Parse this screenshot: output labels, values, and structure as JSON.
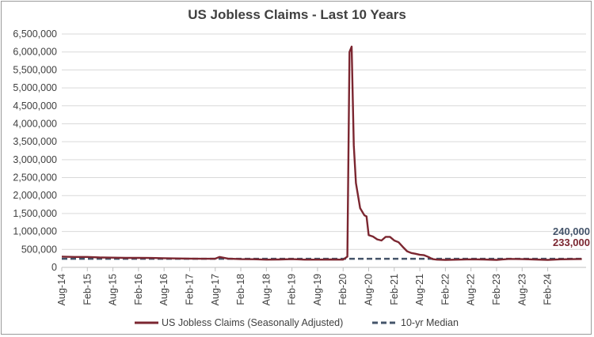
{
  "chart_data": {
    "type": "line",
    "title": "US Jobless Claims - Last 10 Years",
    "xlabel": "",
    "ylabel": "",
    "ylim": [
      0,
      6500000
    ],
    "y_ticks": [
      "0",
      "500,000",
      "1,000,000",
      "1,500,000",
      "2,000,000",
      "2,500,000",
      "3,000,000",
      "3,500,000",
      "4,000,000",
      "4,500,000",
      "5,000,000",
      "5,500,000",
      "6,000,000",
      "6,500,000"
    ],
    "x_ticks": [
      "Aug-14",
      "Feb-15",
      "Aug-15",
      "Feb-16",
      "Aug-16",
      "Feb-17",
      "Aug-17",
      "Feb-18",
      "Aug-18",
      "Feb-19",
      "Aug-19",
      "Feb-20",
      "Aug-20",
      "Feb-21",
      "Aug-21",
      "Feb-22",
      "Aug-22",
      "Feb-23",
      "Aug-23",
      "Feb-24"
    ],
    "grid": true,
    "legend_position": "bottom",
    "series": [
      {
        "name": "US Jobless Claims (Seasonally Adjusted)",
        "color": "#7b2630",
        "style": "solid",
        "x": [
          "2014-08",
          "2014-11",
          "2015-02",
          "2015-05",
          "2015-08",
          "2015-11",
          "2016-02",
          "2016-05",
          "2016-08",
          "2016-11",
          "2017-02",
          "2017-05",
          "2017-08",
          "2017-09",
          "2017-11",
          "2018-02",
          "2018-05",
          "2018-08",
          "2018-11",
          "2019-02",
          "2019-05",
          "2019-08",
          "2019-11",
          "2020-02",
          "2020-03a",
          "2020-03b",
          "2020-04a",
          "2020-04b",
          "2020-05",
          "2020-06",
          "2020-07a",
          "2020-07b",
          "2020-08a",
          "2020-08b",
          "2020-09",
          "2020-10",
          "2020-11",
          "2020-12",
          "2021-01",
          "2021-02",
          "2021-03",
          "2021-04",
          "2021-05",
          "2021-06",
          "2021-07",
          "2021-08",
          "2021-09",
          "2021-10",
          "2021-11",
          "2021-12",
          "2022-02",
          "2022-05",
          "2022-08",
          "2022-11",
          "2023-02",
          "2023-05",
          "2023-08",
          "2023-11",
          "2024-02",
          "2024-05",
          "2024-08",
          "2024-10"
        ],
        "values": [
          300000,
          290000,
          290000,
          275000,
          270000,
          265000,
          265000,
          262000,
          255000,
          250000,
          245000,
          240000,
          242000,
          290000,
          245000,
          230000,
          228000,
          215000,
          220000,
          230000,
          215000,
          215000,
          220000,
          215000,
          300000,
          6000000,
          6150000,
          3400000,
          2350000,
          1650000,
          1450000,
          1420000,
          900000,
          880000,
          860000,
          780000,
          750000,
          850000,
          850000,
          750000,
          700000,
          570000,
          450000,
          400000,
          380000,
          350000,
          340000,
          290000,
          230000,
          215000,
          210000,
          215000,
          225000,
          220000,
          210000,
          235000,
          230000,
          220000,
          210000,
          225000,
          230000,
          233000
        ]
      },
      {
        "name": "10-yr Median",
        "color": "#44546a",
        "style": "dashed",
        "values_constant": 240000
      }
    ],
    "annotations": [
      {
        "text": "240,000",
        "color": "#44546a"
      },
      {
        "text": "233,000",
        "color": "#7b2630"
      }
    ]
  }
}
